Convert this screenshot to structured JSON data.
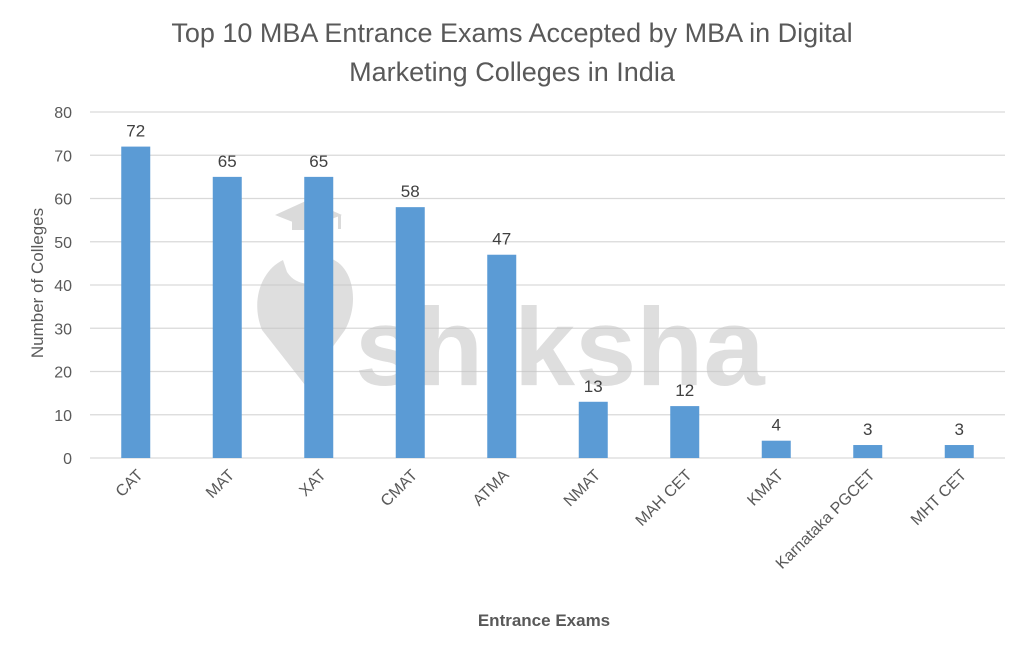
{
  "chart_data": {
    "type": "bar",
    "title": "Top 10 MBA Entrance Exams Accepted by MBA in Digital Marketing Colleges in India",
    "title_lines": [
      "Top 10 MBA Entrance Exams Accepted by MBA in Digital",
      "Marketing Colleges in India"
    ],
    "xlabel": "Entrance Exams",
    "ylabel": "Number of Colleges",
    "categories": [
      "CAT",
      "MAT",
      "XAT",
      "CMAT",
      "ATMA",
      "NMAT",
      "MAH CET",
      "KMAT",
      "Karnataka PGCET",
      "MHT CET"
    ],
    "values": [
      72,
      65,
      65,
      58,
      47,
      13,
      12,
      4,
      3,
      3
    ],
    "ylim": [
      0,
      80
    ],
    "yticks": [
      0,
      10,
      20,
      30,
      40,
      50,
      60,
      70,
      80
    ],
    "grid": true,
    "legend": "none",
    "data_labels": true,
    "bar_color": "#5B9BD5",
    "watermark": "shiksha"
  }
}
